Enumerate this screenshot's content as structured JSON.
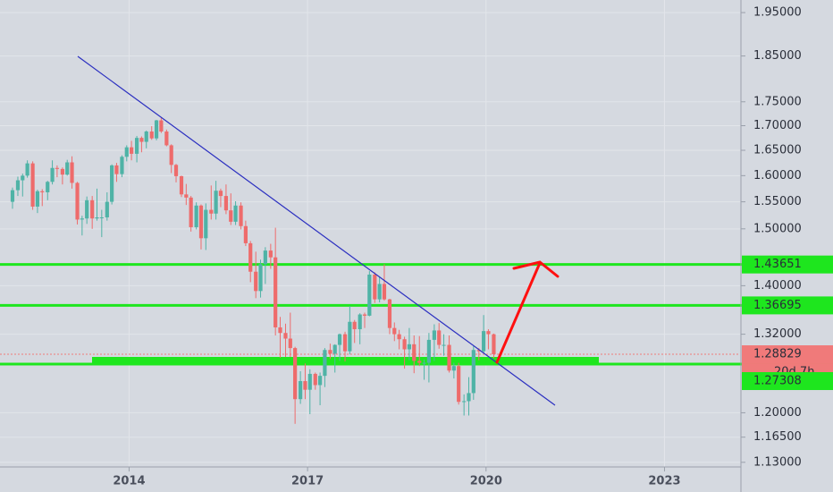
{
  "chart_data": {
    "type": "candlestick",
    "log_scale": true,
    "grid": true,
    "up_color": "#4fb3a6",
    "down_color": "#ee6b6b",
    "level_color": "#1ee61e",
    "last_price_color": "#f07a7a",
    "xlim": [
      2011.83,
      2024.27
    ],
    "xticks": [
      2014,
      2017,
      2020,
      2023
    ],
    "ylim": [
      1.12,
      1.98
    ],
    "yticks": [
      {
        "value": 1.95,
        "label": "1.95000"
      },
      {
        "value": 1.85,
        "label": "1.85000"
      },
      {
        "value": 1.75,
        "label": "1.75000"
      },
      {
        "value": 1.7,
        "label": "1.70000"
      },
      {
        "value": 1.65,
        "label": "1.65000"
      },
      {
        "value": 1.6,
        "label": "1.60000"
      },
      {
        "value": 1.55,
        "label": "1.55000"
      },
      {
        "value": 1.5,
        "label": "1.50000"
      },
      {
        "value": 1.4,
        "label": "1.40000"
      },
      {
        "value": 1.32,
        "label": "1.32000"
      },
      {
        "value": 1.2,
        "label": "1.20000"
      },
      {
        "value": 1.165,
        "label": "1.16500"
      },
      {
        "value": 1.13,
        "label": "1.13000"
      }
    ],
    "levels": [
      1.43651,
      1.36695,
      1.27308
    ],
    "last_price": 1.28829,
    "countdown": "20d 7h",
    "x": [
      2012.04,
      2012.13,
      2012.21,
      2012.29,
      2012.38,
      2012.46,
      2012.54,
      2012.63,
      2012.71,
      2012.79,
      2012.88,
      2012.96,
      2013.04,
      2013.13,
      2013.21,
      2013.29,
      2013.38,
      2013.46,
      2013.54,
      2013.63,
      2013.71,
      2013.79,
      2013.88,
      2013.96,
      2014.04,
      2014.13,
      2014.21,
      2014.29,
      2014.38,
      2014.46,
      2014.54,
      2014.63,
      2014.71,
      2014.79,
      2014.88,
      2014.96,
      2015.04,
      2015.13,
      2015.21,
      2015.29,
      2015.38,
      2015.46,
      2015.54,
      2015.63,
      2015.71,
      2015.79,
      2015.88,
      2015.96,
      2016.04,
      2016.13,
      2016.21,
      2016.29,
      2016.38,
      2016.46,
      2016.54,
      2016.63,
      2016.71,
      2016.79,
      2016.88,
      2016.96,
      2017.04,
      2017.13,
      2017.21,
      2017.29,
      2017.38,
      2017.46,
      2017.54,
      2017.63,
      2017.71,
      2017.79,
      2017.88,
      2017.96,
      2018.04,
      2018.13,
      2018.21,
      2018.29,
      2018.38,
      2018.46,
      2018.54,
      2018.63,
      2018.71,
      2018.79,
      2018.88,
      2018.96,
      2019.04,
      2019.13,
      2019.21,
      2019.29,
      2019.38,
      2019.46,
      2019.54,
      2019.63,
      2019.71,
      2019.79,
      2019.88,
      2019.96,
      2020.04,
      2020.13
    ],
    "open": [
      1.55,
      1.572,
      1.591,
      1.6,
      1.624,
      1.541,
      1.57,
      1.568,
      1.588,
      1.615,
      1.613,
      1.602,
      1.626,
      1.586,
      1.517,
      1.519,
      1.553,
      1.519,
      1.521,
      1.521,
      1.55,
      1.62,
      1.603,
      1.637,
      1.656,
      1.643,
      1.675,
      1.667,
      1.688,
      1.674,
      1.711,
      1.688,
      1.66,
      1.621,
      1.599,
      1.564,
      1.558,
      1.503,
      1.543,
      1.483,
      1.535,
      1.528,
      1.571,
      1.561,
      1.534,
      1.513,
      1.543,
      1.505,
      1.474,
      1.424,
      1.391,
      1.437,
      1.461,
      1.449,
      1.331,
      1.322,
      1.313,
      1.298,
      1.22,
      1.247,
      1.234,
      1.258,
      1.241,
      1.255,
      1.295,
      1.289,
      1.303,
      1.32,
      1.293,
      1.34,
      1.328,
      1.352,
      1.35,
      1.419,
      1.377,
      1.403,
      1.377,
      1.33,
      1.32,
      1.312,
      1.296,
      1.304,
      1.278,
      1.275,
      1.275,
      1.311,
      1.326,
      1.303,
      1.303,
      1.263,
      1.27,
      1.216,
      1.217,
      1.229,
      1.295,
      1.293,
      1.325,
      1.32
    ],
    "high": [
      1.577,
      1.598,
      1.604,
      1.63,
      1.628,
      1.573,
      1.574,
      1.59,
      1.63,
      1.62,
      1.616,
      1.631,
      1.638,
      1.588,
      1.524,
      1.56,
      1.561,
      1.575,
      1.535,
      1.568,
      1.622,
      1.625,
      1.64,
      1.66,
      1.669,
      1.679,
      1.678,
      1.69,
      1.699,
      1.712,
      1.717,
      1.692,
      1.662,
      1.623,
      1.6,
      1.584,
      1.561,
      1.549,
      1.545,
      1.547,
      1.581,
      1.59,
      1.575,
      1.583,
      1.566,
      1.551,
      1.549,
      1.515,
      1.478,
      1.459,
      1.445,
      1.467,
      1.473,
      1.502,
      1.348,
      1.337,
      1.355,
      1.3,
      1.262,
      1.274,
      1.265,
      1.26,
      1.26,
      1.298,
      1.305,
      1.304,
      1.321,
      1.324,
      1.366,
      1.343,
      1.354,
      1.355,
      1.425,
      1.423,
      1.415,
      1.437,
      1.378,
      1.339,
      1.327,
      1.316,
      1.33,
      1.318,
      1.317,
      1.28,
      1.322,
      1.336,
      1.338,
      1.32,
      1.318,
      1.275,
      1.275,
      1.227,
      1.253,
      1.301,
      1.298,
      1.351,
      1.328,
      1.321
    ],
    "low": [
      1.537,
      1.561,
      1.56,
      1.596,
      1.535,
      1.529,
      1.542,
      1.553,
      1.583,
      1.597,
      1.583,
      1.6,
      1.575,
      1.508,
      1.488,
      1.509,
      1.5,
      1.515,
      1.485,
      1.515,
      1.545,
      1.588,
      1.597,
      1.628,
      1.63,
      1.626,
      1.646,
      1.654,
      1.671,
      1.67,
      1.685,
      1.658,
      1.605,
      1.587,
      1.559,
      1.544,
      1.495,
      1.499,
      1.463,
      1.462,
      1.517,
      1.517,
      1.54,
      1.527,
      1.507,
      1.507,
      1.499,
      1.469,
      1.406,
      1.379,
      1.38,
      1.403,
      1.429,
      1.318,
      1.283,
      1.284,
      1.284,
      1.184,
      1.213,
      1.22,
      1.198,
      1.234,
      1.211,
      1.238,
      1.281,
      1.26,
      1.278,
      1.277,
      1.288,
      1.306,
      1.304,
      1.33,
      1.349,
      1.371,
      1.372,
      1.375,
      1.32,
      1.309,
      1.296,
      1.266,
      1.279,
      1.259,
      1.27,
      1.249,
      1.245,
      1.278,
      1.297,
      1.286,
      1.26,
      1.251,
      1.212,
      1.196,
      1.196,
      1.219,
      1.279,
      1.29,
      1.296,
      1.2826
    ],
    "close": [
      1.572,
      1.591,
      1.6,
      1.624,
      1.541,
      1.57,
      1.568,
      1.588,
      1.615,
      1.613,
      1.602,
      1.626,
      1.586,
      1.517,
      1.519,
      1.553,
      1.519,
      1.521,
      1.521,
      1.55,
      1.62,
      1.603,
      1.637,
      1.656,
      1.643,
      1.675,
      1.667,
      1.688,
      1.674,
      1.711,
      1.688,
      1.66,
      1.621,
      1.599,
      1.564,
      1.558,
      1.503,
      1.543,
      1.483,
      1.535,
      1.528,
      1.571,
      1.561,
      1.534,
      1.513,
      1.543,
      1.505,
      1.474,
      1.424,
      1.391,
      1.437,
      1.461,
      1.449,
      1.331,
      1.322,
      1.313,
      1.298,
      1.22,
      1.247,
      1.234,
      1.258,
      1.241,
      1.255,
      1.295,
      1.289,
      1.303,
      1.32,
      1.293,
      1.34,
      1.328,
      1.352,
      1.35,
      1.419,
      1.377,
      1.403,
      1.377,
      1.33,
      1.32,
      1.312,
      1.296,
      1.304,
      1.278,
      1.275,
      1.275,
      1.311,
      1.326,
      1.303,
      1.303,
      1.263,
      1.27,
      1.216,
      1.217,
      1.229,
      1.295,
      1.293,
      1.325,
      1.32,
      1.28829
    ]
  }
}
